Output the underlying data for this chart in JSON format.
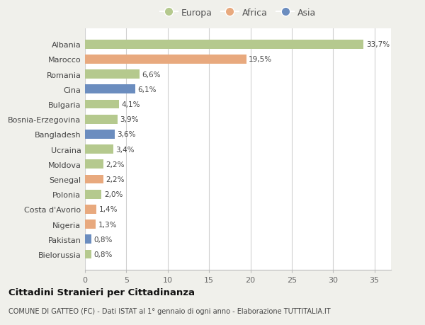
{
  "countries": [
    "Albania",
    "Marocco",
    "Romania",
    "Cina",
    "Bulgaria",
    "Bosnia-Erzegovina",
    "Bangladesh",
    "Ucraina",
    "Moldova",
    "Senegal",
    "Polonia",
    "Costa d'Avorio",
    "Nigeria",
    "Pakistan",
    "Bielorussia"
  ],
  "values": [
    33.7,
    19.5,
    6.6,
    6.1,
    4.1,
    3.9,
    3.6,
    3.4,
    2.2,
    2.2,
    2.0,
    1.4,
    1.3,
    0.8,
    0.8
  ],
  "labels": [
    "33,7%",
    "19,5%",
    "6,6%",
    "6,1%",
    "4,1%",
    "3,9%",
    "3,6%",
    "3,4%",
    "2,2%",
    "2,2%",
    "2,0%",
    "1,4%",
    "1,3%",
    "0,8%",
    "0,8%"
  ],
  "continents": [
    "Europa",
    "Africa",
    "Europa",
    "Asia",
    "Europa",
    "Europa",
    "Asia",
    "Europa",
    "Europa",
    "Africa",
    "Europa",
    "Africa",
    "Africa",
    "Asia",
    "Europa"
  ],
  "colors": {
    "Europa": "#b5c98e",
    "Africa": "#e8a97e",
    "Asia": "#6b8dbf"
  },
  "title": "Cittadini Stranieri per Cittadinanza",
  "subtitle": "COMUNE DI GATTEO (FC) - Dati ISTAT al 1° gennaio di ogni anno - Elaborazione TUTTITALIA.IT",
  "xlim": [
    0,
    37
  ],
  "xticks": [
    0,
    5,
    10,
    15,
    20,
    25,
    30,
    35
  ],
  "background_color": "#f0f0eb",
  "plot_bg_color": "#ffffff"
}
